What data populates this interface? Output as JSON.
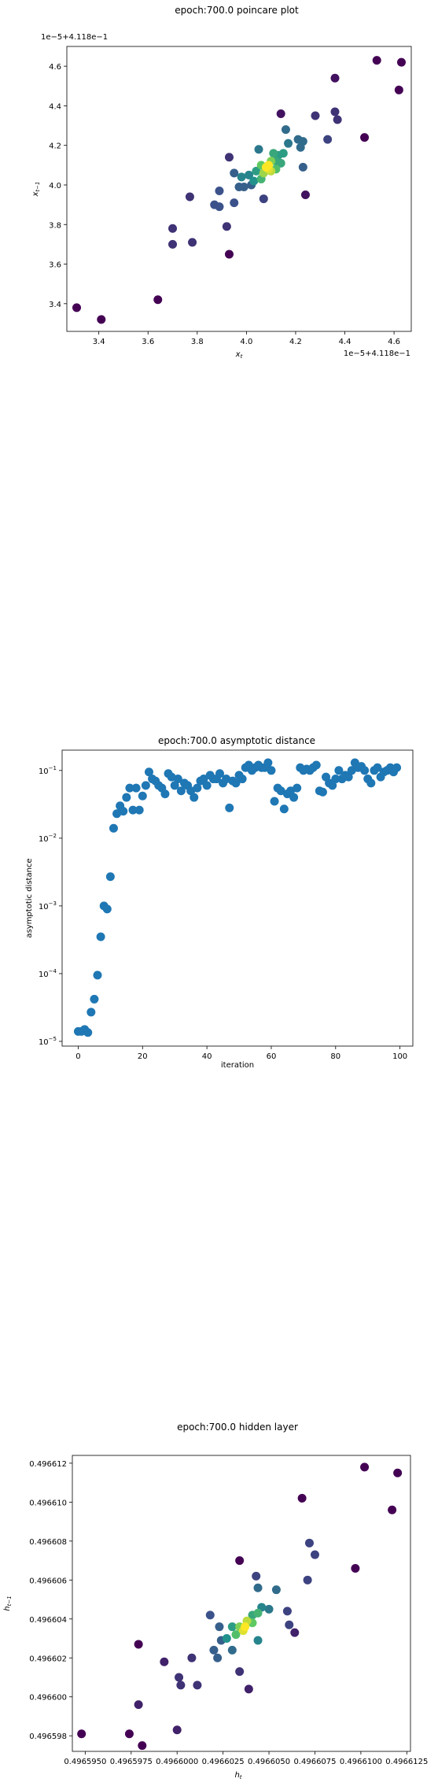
{
  "chart_data": [
    {
      "type": "scatter",
      "title": "epoch:700.0 poincare plot",
      "xlabel": "x_t",
      "ylabel": "x_{t-1}",
      "x_offset_text": "1e−5+4.118e−1",
      "y_offset_text": "1e−5+4.118e−1",
      "xlim": [
        3.27,
        4.67
      ],
      "ylim": [
        3.26,
        4.7
      ],
      "xticks": [
        3.4,
        3.6,
        3.8,
        4.0,
        4.2,
        4.4,
        4.6
      ],
      "xtick_labels": [
        "3.4",
        "3.6",
        "3.8",
        "4.0",
        "4.2",
        "4.4",
        "4.6"
      ],
      "yticks": [
        3.4,
        3.6,
        3.8,
        4.0,
        4.2,
        4.4,
        4.6
      ],
      "ytick_labels": [
        "3.4",
        "3.6",
        "3.8",
        "4.0",
        "4.2",
        "4.4",
        "4.6"
      ],
      "colormap": "viridis (density)",
      "points": [
        {
          "x": 3.31,
          "y": 3.38,
          "c": 0.0
        },
        {
          "x": 3.41,
          "y": 3.32,
          "c": 0.0
        },
        {
          "x": 3.64,
          "y": 3.42,
          "c": 0.0
        },
        {
          "x": 3.93,
          "y": 3.65,
          "c": 0.0
        },
        {
          "x": 4.53,
          "y": 4.63,
          "c": 0.0
        },
        {
          "x": 4.63,
          "y": 4.62,
          "c": 0.0
        },
        {
          "x": 4.62,
          "y": 4.48,
          "c": 0.0
        },
        {
          "x": 4.48,
          "y": 4.24,
          "c": 0.0
        },
        {
          "x": 4.36,
          "y": 4.54,
          "c": 0.05
        },
        {
          "x": 4.14,
          "y": 4.36,
          "c": 0.05
        },
        {
          "x": 4.24,
          "y": 3.95,
          "c": 0.05
        },
        {
          "x": 3.7,
          "y": 3.78,
          "c": 0.15
        },
        {
          "x": 3.7,
          "y": 3.7,
          "c": 0.15
        },
        {
          "x": 3.78,
          "y": 3.71,
          "c": 0.15
        },
        {
          "x": 3.77,
          "y": 3.94,
          "c": 0.15
        },
        {
          "x": 3.92,
          "y": 3.79,
          "c": 0.15
        },
        {
          "x": 3.93,
          "y": 4.14,
          "c": 0.15
        },
        {
          "x": 4.36,
          "y": 4.37,
          "c": 0.15
        },
        {
          "x": 4.37,
          "y": 4.33,
          "c": 0.15
        },
        {
          "x": 4.28,
          "y": 4.35,
          "c": 0.15
        },
        {
          "x": 4.33,
          "y": 4.23,
          "c": 0.2
        },
        {
          "x": 4.07,
          "y": 3.93,
          "c": 0.2
        },
        {
          "x": 3.87,
          "y": 3.9,
          "c": 0.25
        },
        {
          "x": 3.89,
          "y": 3.89,
          "c": 0.25
        },
        {
          "x": 3.95,
          "y": 3.91,
          "c": 0.25
        },
        {
          "x": 3.89,
          "y": 3.97,
          "c": 0.25
        },
        {
          "x": 3.95,
          "y": 4.06,
          "c": 0.3
        },
        {
          "x": 3.97,
          "y": 3.99,
          "c": 0.3
        },
        {
          "x": 3.99,
          "y": 3.99,
          "c": 0.3
        },
        {
          "x": 4.02,
          "y": 4.0,
          "c": 0.3
        },
        {
          "x": 4.23,
          "y": 4.09,
          "c": 0.3
        },
        {
          "x": 4.21,
          "y": 4.23,
          "c": 0.35
        },
        {
          "x": 4.23,
          "y": 4.22,
          "c": 0.35
        },
        {
          "x": 4.22,
          "y": 4.19,
          "c": 0.35
        },
        {
          "x": 4.16,
          "y": 4.28,
          "c": 0.35
        },
        {
          "x": 4.17,
          "y": 4.21,
          "c": 0.4
        },
        {
          "x": 4.05,
          "y": 4.18,
          "c": 0.4
        },
        {
          "x": 3.98,
          "y": 4.04,
          "c": 0.45
        },
        {
          "x": 4.01,
          "y": 4.05,
          "c": 0.45
        },
        {
          "x": 4.03,
          "y": 4.02,
          "c": 0.5
        },
        {
          "x": 4.04,
          "y": 4.07,
          "c": 0.55
        },
        {
          "x": 4.13,
          "y": 4.15,
          "c": 0.55
        },
        {
          "x": 4.15,
          "y": 4.16,
          "c": 0.55
        },
        {
          "x": 4.12,
          "y": 4.12,
          "c": 0.6
        },
        {
          "x": 4.11,
          "y": 4.16,
          "c": 0.6
        },
        {
          "x": 4.14,
          "y": 4.11,
          "c": 0.6
        },
        {
          "x": 4.06,
          "y": 4.03,
          "c": 0.65
        },
        {
          "x": 4.12,
          "y": 4.08,
          "c": 0.7
        },
        {
          "x": 4.06,
          "y": 4.1,
          "c": 0.75
        },
        {
          "x": 4.1,
          "y": 4.12,
          "c": 0.8
        },
        {
          "x": 4.07,
          "y": 4.06,
          "c": 0.85
        },
        {
          "x": 4.1,
          "y": 4.07,
          "c": 0.9
        },
        {
          "x": 4.08,
          "y": 4.09,
          "c": 1.0
        },
        {
          "x": 4.09,
          "y": 4.1,
          "c": 1.0
        },
        {
          "x": 4.09,
          "y": 4.08,
          "c": 0.95
        }
      ]
    },
    {
      "type": "scatter",
      "title": "epoch:700.0 asymptotic distance",
      "xlabel": "iteration",
      "ylabel": "asymptotic distance",
      "yscale": "log",
      "color": "#1f77b4",
      "xlim": [
        -5,
        104
      ],
      "ylim_log10": [
        -5.07,
        -0.7
      ],
      "xticks": [
        0,
        20,
        40,
        60,
        80,
        100
      ],
      "xtick_labels": [
        "0",
        "20",
        "40",
        "60",
        "80",
        "100"
      ],
      "yticks_exp": [
        -5,
        -4,
        -3,
        -2,
        -1
      ],
      "ytick_labels": [
        "10",
        "10",
        "10",
        "10",
        "10"
      ],
      "ytick_exponents": [
        "−5",
        "−4",
        "−3",
        "−2",
        "−1"
      ],
      "x": [
        0,
        1,
        2,
        3,
        4,
        5,
        6,
        7,
        8,
        9,
        10,
        11,
        12,
        13,
        14,
        15,
        16,
        17,
        18,
        19,
        20,
        21,
        22,
        23,
        24,
        25,
        26,
        27,
        28,
        29,
        30,
        31,
        32,
        33,
        34,
        35,
        36,
        37,
        38,
        39,
        40,
        41,
        42,
        43,
        44,
        45,
        46,
        47,
        48,
        49,
        50,
        51,
        52,
        53,
        54,
        55,
        56,
        57,
        58,
        59,
        60,
        61,
        62,
        63,
        64,
        65,
        66,
        67,
        68,
        69,
        70,
        71,
        72,
        73,
        74,
        75,
        76,
        77,
        78,
        79,
        80,
        81,
        82,
        83,
        84,
        85,
        86,
        87,
        88,
        89,
        90,
        91,
        92,
        93,
        94,
        95,
        96,
        97,
        98,
        99
      ],
      "y": [
        1.4e-05,
        1.4e-05,
        1.5e-05,
        1.35e-05,
        2.7e-05,
        4.2e-05,
        9.5e-05,
        0.00035,
        0.001,
        0.0009,
        0.0027,
        0.014,
        0.023,
        0.03,
        0.025,
        0.04,
        0.055,
        0.026,
        0.055,
        0.026,
        0.042,
        0.06,
        0.095,
        0.075,
        0.07,
        0.06,
        0.055,
        0.045,
        0.09,
        0.08,
        0.06,
        0.075,
        0.05,
        0.065,
        0.06,
        0.05,
        0.04,
        0.055,
        0.07,
        0.075,
        0.06,
        0.085,
        0.075,
        0.075,
        0.09,
        0.065,
        0.075,
        0.028,
        0.07,
        0.065,
        0.085,
        0.075,
        0.11,
        0.12,
        0.1,
        0.11,
        0.12,
        0.11,
        0.11,
        0.13,
        0.1,
        0.035,
        0.055,
        0.05,
        0.027,
        0.045,
        0.05,
        0.04,
        0.055,
        0.11,
        0.1,
        0.105,
        0.1,
        0.11,
        0.12,
        0.05,
        0.048,
        0.08,
        0.065,
        0.06,
        0.075,
        0.1,
        0.075,
        0.085,
        0.08,
        0.1,
        0.13,
        0.11,
        0.115,
        0.1,
        0.075,
        0.065,
        0.1,
        0.11,
        0.08,
        0.095,
        0.1,
        0.11,
        0.095,
        0.11
      ]
    },
    {
      "type": "scatter",
      "title": "epoch:700.0 hidden layer",
      "xlabel": "h_t",
      "ylabel": "h_{t-1}",
      "colormap": "viridis (density)",
      "xlim": [
        0.4965943,
        0.4966127
      ],
      "ylim": [
        0.4965972,
        0.4966124
      ],
      "xticks": [
        0.496595,
        0.4965975,
        0.4966,
        0.4966025,
        0.496605,
        0.4966075,
        0.49661,
        0.4966125
      ],
      "xtick_labels": [
        "0.4965950",
        "0.4965975",
        "0.4966000",
        "0.4966025",
        "0.4966050",
        "0.4966075",
        "0.4966100",
        "0.4966125"
      ],
      "yticks": [
        0.496598,
        0.4966,
        0.496602,
        0.496604,
        0.496606,
        0.496608,
        0.49661,
        0.496612
      ],
      "ytick_labels": [
        "0.496598",
        "0.496600",
        "0.496602",
        "0.496604",
        "0.496606",
        "0.496608",
        "0.496610",
        "0.496612"
      ],
      "points": [
        {
          "x": 0.4965948,
          "y": 0.4965981,
          "c": 0.0
        },
        {
          "x": 0.4965974,
          "y": 0.4965981,
          "c": 0.0
        },
        {
          "x": 0.4965981,
          "y": 0.4965975,
          "c": 0.0
        },
        {
          "x": 0.4965979,
          "y": 0.4966027,
          "c": 0.0
        },
        {
          "x": 0.4966034,
          "y": 0.496607,
          "c": 0.0
        },
        {
          "x": 0.4966068,
          "y": 0.4966102,
          "c": 0.0
        },
        {
          "x": 0.4966102,
          "y": 0.4966118,
          "c": 0.0
        },
        {
          "x": 0.496612,
          "y": 0.4966115,
          "c": 0.0
        },
        {
          "x": 0.4966117,
          "y": 0.4966096,
          "c": 0.0
        },
        {
          "x": 0.4966097,
          "y": 0.4966066,
          "c": 0.0
        },
        {
          "x": 0.4965979,
          "y": 0.4965996,
          "c": 0.1
        },
        {
          "x": 0.4966,
          "y": 0.4965983,
          "c": 0.1
        },
        {
          "x": 0.4965993,
          "y": 0.4966018,
          "c": 0.1
        },
        {
          "x": 0.4966039,
          "y": 0.4966004,
          "c": 0.1
        },
        {
          "x": 0.4966064,
          "y": 0.4966033,
          "c": 0.1
        },
        {
          "x": 0.4966002,
          "y": 0.4966006,
          "c": 0.15
        },
        {
          "x": 0.4966001,
          "y": 0.496601,
          "c": 0.15
        },
        {
          "x": 0.4966011,
          "y": 0.4966006,
          "c": 0.15
        },
        {
          "x": 0.4966008,
          "y": 0.496602,
          "c": 0.15
        },
        {
          "x": 0.4966034,
          "y": 0.4966013,
          "c": 0.15
        },
        {
          "x": 0.4966072,
          "y": 0.4966079,
          "c": 0.2
        },
        {
          "x": 0.4966075,
          "y": 0.4966073,
          "c": 0.2
        },
        {
          "x": 0.4966071,
          "y": 0.496606,
          "c": 0.2
        },
        {
          "x": 0.496606,
          "y": 0.4966044,
          "c": 0.2
        },
        {
          "x": 0.4966061,
          "y": 0.4966037,
          "c": 0.2
        },
        {
          "x": 0.4966043,
          "y": 0.4966062,
          "c": 0.2
        },
        {
          "x": 0.4966018,
          "y": 0.4966042,
          "c": 0.25
        },
        {
          "x": 0.4966024,
          "y": 0.4966029,
          "c": 0.3
        },
        {
          "x": 0.4966022,
          "y": 0.496602,
          "c": 0.3
        },
        {
          "x": 0.496602,
          "y": 0.4966024,
          "c": 0.3
        },
        {
          "x": 0.4966023,
          "y": 0.4966036,
          "c": 0.3
        },
        {
          "x": 0.496603,
          "y": 0.4966024,
          "c": 0.35
        },
        {
          "x": 0.4966044,
          "y": 0.4966056,
          "c": 0.35
        },
        {
          "x": 0.4966054,
          "y": 0.4966055,
          "c": 0.35
        },
        {
          "x": 0.496605,
          "y": 0.4966045,
          "c": 0.4
        },
        {
          "x": 0.4966046,
          "y": 0.4966046,
          "c": 0.45
        },
        {
          "x": 0.4966044,
          "y": 0.4966029,
          "c": 0.45
        },
        {
          "x": 0.4966027,
          "y": 0.496603,
          "c": 0.5
        },
        {
          "x": 0.496603,
          "y": 0.4966036,
          "c": 0.55
        },
        {
          "x": 0.4966041,
          "y": 0.4966042,
          "c": 0.6
        },
        {
          "x": 0.4966044,
          "y": 0.4966043,
          "c": 0.65
        },
        {
          "x": 0.4966032,
          "y": 0.4966032,
          "c": 0.7
        },
        {
          "x": 0.4966041,
          "y": 0.4966038,
          "c": 0.75
        },
        {
          "x": 0.4966034,
          "y": 0.4966036,
          "c": 0.8
        },
        {
          "x": 0.4966038,
          "y": 0.4966039,
          "c": 0.9
        },
        {
          "x": 0.4966036,
          "y": 0.4966034,
          "c": 0.95
        },
        {
          "x": 0.4966037,
          "y": 0.4966036,
          "c": 1.0
        }
      ]
    }
  ]
}
